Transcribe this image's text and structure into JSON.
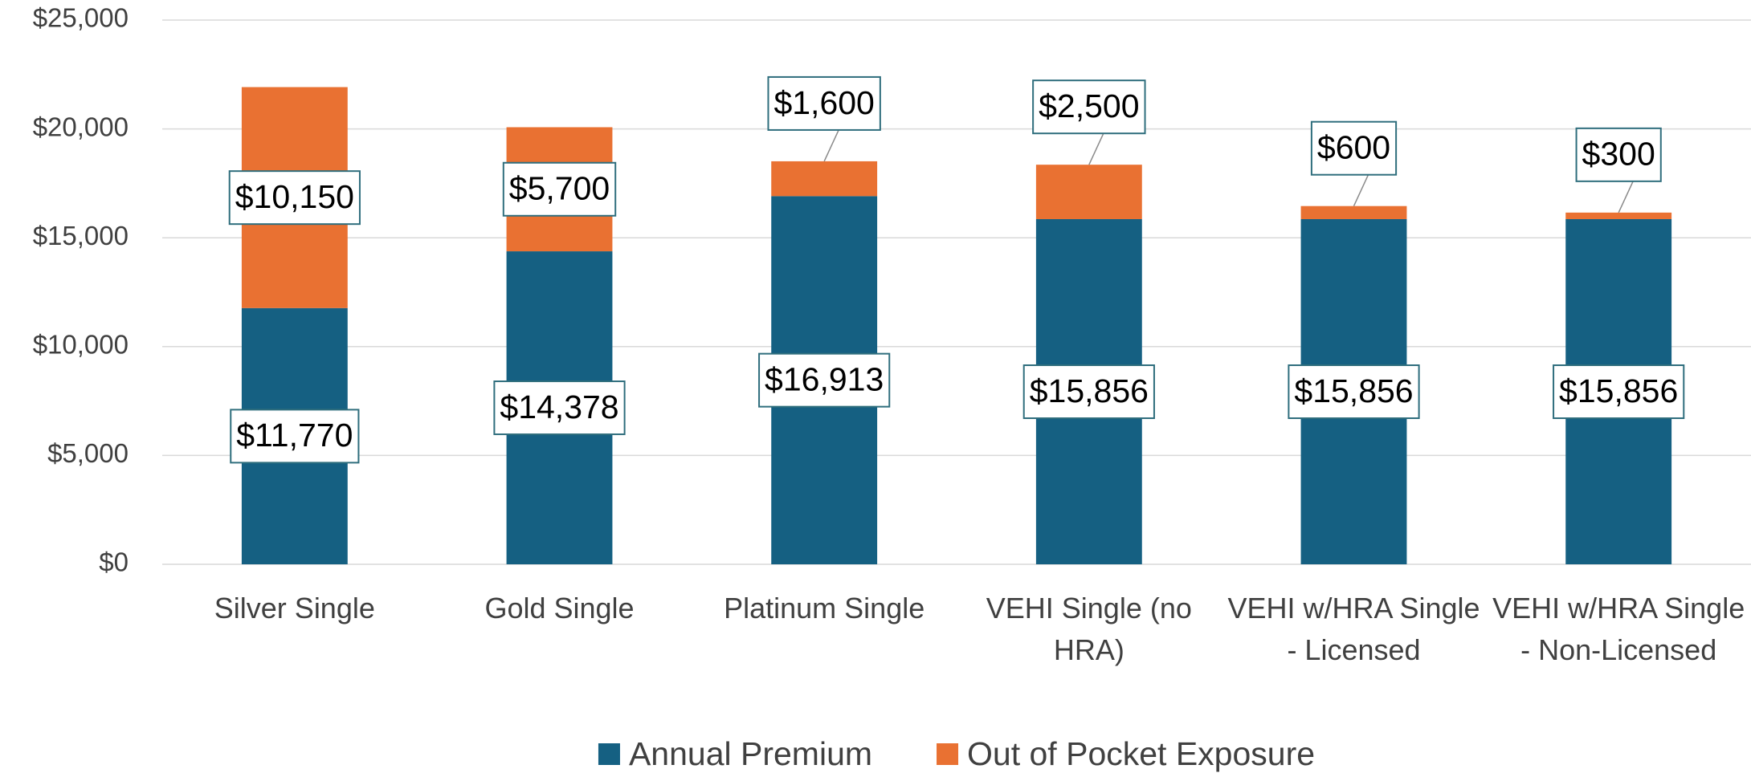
{
  "chart_data": {
    "type": "stacked_bar",
    "categories": [
      "Silver Single",
      "Gold Single",
      "Platinum Single",
      "VEHI Single (no HRA)",
      "VEHI w/HRA Single - Licensed",
      "VEHI w/HRA Single - Non-Licensed"
    ],
    "series": [
      {
        "name": "Annual Premium",
        "color": "#156082",
        "values": [
          11770,
          14378,
          16913,
          15856,
          15856,
          15856
        ],
        "value_labels": [
          "$11,770",
          "$14,378",
          "$16,913",
          "$15,856",
          "$15,856",
          "$15,856"
        ]
      },
      {
        "name": "Out of Pocket Exposure",
        "color": "#e97132",
        "values": [
          10150,
          5700,
          1600,
          2500,
          600,
          300
        ],
        "value_labels": [
          "$10,150",
          "$5,700",
          "$1,600",
          "$2,500",
          "$600",
          "$300"
        ]
      }
    ],
    "ylim": [
      0,
      25000
    ],
    "yticks": [
      {
        "value": 0,
        "label": "$0"
      },
      {
        "value": 5000,
        "label": "$5,000"
      },
      {
        "value": 10000,
        "label": "$10,000"
      },
      {
        "value": 15000,
        "label": "$15,000"
      },
      {
        "value": 20000,
        "label": "$20,000"
      },
      {
        "value": 25000,
        "label": "$25,000"
      }
    ],
    "grid": true,
    "legend": "bottom"
  }
}
